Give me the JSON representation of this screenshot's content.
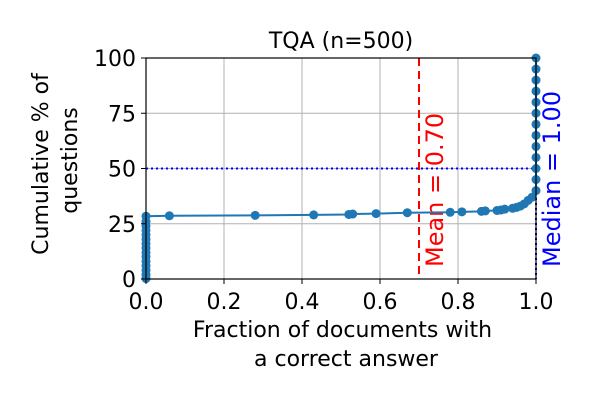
{
  "chart_data": {
    "type": "line",
    "title": "TQA (n=500)",
    "xlabel": [
      "Fraction of documents with",
      "a correct answer"
    ],
    "ylabel": [
      "Cumulative % of",
      "questions"
    ],
    "xlim": [
      0,
      1
    ],
    "ylim": [
      0,
      100
    ],
    "xticks": [
      "0.0",
      "0.2",
      "0.4",
      "0.6",
      "0.8",
      "1.0"
    ],
    "yticks": [
      "0",
      "25",
      "50",
      "75",
      "100"
    ],
    "grid": true,
    "series": [
      {
        "color": "#1f77b4",
        "points": [
          [
            0.0,
            0.2
          ],
          [
            0.0,
            2
          ],
          [
            0.0,
            4
          ],
          [
            0.0,
            6
          ],
          [
            0.0,
            8
          ],
          [
            0.0,
            10
          ],
          [
            0.0,
            12
          ],
          [
            0.0,
            14
          ],
          [
            0.0,
            16
          ],
          [
            0.0,
            18
          ],
          [
            0.0,
            20
          ],
          [
            0.0,
            22
          ],
          [
            0.0,
            24
          ],
          [
            0.0,
            26
          ],
          [
            0.0,
            28.4
          ],
          [
            0.06,
            28.6
          ],
          [
            0.28,
            28.8
          ],
          [
            0.43,
            29.0
          ],
          [
            0.52,
            29.2
          ],
          [
            0.53,
            29.4
          ],
          [
            0.59,
            29.6
          ],
          [
            0.67,
            30.0
          ],
          [
            0.78,
            30.2
          ],
          [
            0.81,
            30.4
          ],
          [
            0.86,
            30.6
          ],
          [
            0.87,
            30.8
          ],
          [
            0.9,
            31.0
          ],
          [
            0.91,
            31.2
          ],
          [
            0.92,
            31.6
          ],
          [
            0.94,
            32.0
          ],
          [
            0.95,
            32.4
          ],
          [
            0.96,
            33.0
          ],
          [
            0.97,
            34.0
          ],
          [
            0.98,
            35.6
          ],
          [
            0.99,
            37.0
          ],
          [
            1.0,
            40
          ],
          [
            1.0,
            45
          ],
          [
            1.0,
            50
          ],
          [
            1.0,
            55
          ],
          [
            1.0,
            60
          ],
          [
            1.0,
            65
          ],
          [
            1.0,
            70
          ],
          [
            1.0,
            75
          ],
          [
            1.0,
            80
          ],
          [
            1.0,
            85
          ],
          [
            1.0,
            90
          ],
          [
            1.0,
            95
          ],
          [
            1.0,
            100
          ]
        ]
      }
    ],
    "reference_lines": [
      {
        "orientation": "vertical",
        "x": 0.7,
        "label": "Mean = 0.70",
        "color": "#ff0000",
        "style": "dashed"
      },
      {
        "orientation": "vertical",
        "x": 1.0,
        "label": "Median = 1.00",
        "color": "#0000ff",
        "style": "dotted"
      },
      {
        "orientation": "horizontal",
        "y": 50,
        "color": "#0000ff",
        "style": "dotted"
      }
    ]
  }
}
